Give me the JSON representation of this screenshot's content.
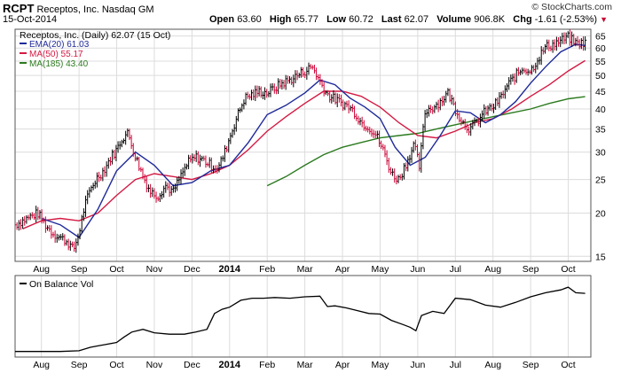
{
  "header": {
    "symbol": "RCPT",
    "company": "Receptos, Inc.",
    "exchange": "Nasdaq GM",
    "date": "15-Oct-2014",
    "brand": "© StockCharts.com",
    "stats": [
      {
        "label": "Open",
        "value": "63.60"
      },
      {
        "label": "High",
        "value": "65.77"
      },
      {
        "label": "Low",
        "value": "60.72"
      },
      {
        "label": "Last",
        "value": "62.07"
      },
      {
        "label": "Volume",
        "value": "906.8K"
      },
      {
        "label": "Chg",
        "value": "-1.61 (-2.53%)"
      }
    ],
    "chg_arrow": "down-triangle-icon"
  },
  "colors": {
    "price_up": "#000000",
    "price_down": "#cc0033",
    "ema20": "#1f2a9a",
    "ma50": "#d41a43",
    "ma185": "#2b7a1e",
    "obv": "#000000",
    "grid": "#dcdcdc"
  },
  "chart_data": [
    {
      "type": "line",
      "panel": "price",
      "scale": "log",
      "ylim": [
        14.5,
        68
      ],
      "legend_position": "top-left",
      "legend": [
        {
          "label": "Receptos, Inc. (Daily) 62.07 (15 Oct)",
          "color": "#000000"
        },
        {
          "label": "EMA(20) 61.03",
          "color": "#1f2a9a"
        },
        {
          "label": "MA(50) 55.17",
          "color": "#d41a43"
        },
        {
          "label": "MA(185) 43.40",
          "color": "#2b7a1e"
        }
      ],
      "y_ticks": [
        "65",
        "60",
        "55",
        "50",
        "45",
        "40",
        "35",
        "30",
        "25",
        "20",
        "15"
      ],
      "y_tick_values": [
        65,
        60,
        55,
        50,
        45,
        40,
        35,
        30,
        25,
        20,
        15
      ],
      "x_ticks": [
        "Aug",
        "Sep",
        "Oct",
        "Nov",
        "Dec",
        "2014",
        "Feb",
        "Mar",
        "Apr",
        "May",
        "Jun",
        "Jul",
        "Aug",
        "Sep",
        "Oct"
      ],
      "x_tick_bold": [
        false,
        false,
        false,
        false,
        false,
        true,
        false,
        false,
        false,
        false,
        false,
        false,
        false,
        false,
        false
      ],
      "x_tick_month_index": [
        1,
        2,
        3,
        4,
        5,
        6,
        7,
        8,
        9,
        10,
        11,
        12,
        13,
        14,
        15
      ],
      "x_range_months": [
        0.3,
        15.6
      ],
      "series": [
        {
          "name": "Receptos, Inc. (Daily)",
          "month_index": [
            0.3,
            0.5,
            0.7,
            0.9,
            1.1,
            1.3,
            1.5,
            1.7,
            1.85,
            2.0,
            2.15,
            2.35,
            2.5,
            2.65,
            2.85,
            3.0,
            3.15,
            3.3,
            3.5,
            3.7,
            3.9,
            4.1,
            4.3,
            4.5,
            4.7,
            4.9,
            5.1,
            5.3,
            5.5,
            5.7,
            5.85,
            6.0,
            6.2,
            6.4,
            6.6,
            6.8,
            7.0,
            7.2,
            7.4,
            7.6,
            7.8,
            8.0,
            8.2,
            8.4,
            8.6,
            8.75,
            8.9,
            9.1,
            9.3,
            9.5,
            9.7,
            9.9,
            10.1,
            10.3,
            10.5,
            10.7,
            10.9,
            11.05,
            11.2,
            11.4,
            11.6,
            11.8,
            12.0,
            12.2,
            12.4,
            12.6,
            12.8,
            13.0,
            13.2,
            13.4,
            13.6,
            13.8,
            14.0,
            14.2,
            14.4,
            14.6,
            14.8,
            15.0,
            15.2,
            15.45
          ],
          "values": [
            18.5,
            19.0,
            19.5,
            20.0,
            18.5,
            17.5,
            17.0,
            16.5,
            15.6,
            17.5,
            21.0,
            24.0,
            25.5,
            26.5,
            29.0,
            30.5,
            33.0,
            34.0,
            29.0,
            25.5,
            23.0,
            22.5,
            24.0,
            23.0,
            25.5,
            28.0,
            29.0,
            28.5,
            27.5,
            27.0,
            29.5,
            33.0,
            38.0,
            43.0,
            44.0,
            45.0,
            44.5,
            46.0,
            47.5,
            48.5,
            50.0,
            51.5,
            53.0,
            48.0,
            44.0,
            43.0,
            42.0,
            41.0,
            39.5,
            36.5,
            35.5,
            33.5,
            30.0,
            26.0,
            25.0,
            28.0,
            31.5,
            27.0,
            39.5,
            40.5,
            42.0,
            44.5,
            40.0,
            36.5,
            35.0,
            37.0,
            39.5,
            40.5,
            43.0,
            47.0,
            50.0,
            52.5,
            51.5,
            56.0,
            60.5,
            61.5,
            63.0,
            64.5,
            62.0,
            62.07
          ]
        },
        {
          "name": "EMA(20)",
          "month_index": [
            1.0,
            1.5,
            2.0,
            2.5,
            3.0,
            3.5,
            4.0,
            4.5,
            5.0,
            5.5,
            6.0,
            6.5,
            7.0,
            7.5,
            8.0,
            8.4,
            8.8,
            9.2,
            9.6,
            10.0,
            10.4,
            10.8,
            11.2,
            11.6,
            12.0,
            12.4,
            12.8,
            13.2,
            13.6,
            14.0,
            14.4,
            14.8,
            15.2,
            15.45
          ],
          "values": [
            19.3,
            18.5,
            17.0,
            20.5,
            26.5,
            30.0,
            27.5,
            24.0,
            24.5,
            26.5,
            27.5,
            32.0,
            38.5,
            41.0,
            44.5,
            48.5,
            47.0,
            43.0,
            40.5,
            37.5,
            31.0,
            27.5,
            29.0,
            33.5,
            39.5,
            39.0,
            36.5,
            38.5,
            42.0,
            47.5,
            53.0,
            58.5,
            61.5,
            61.03
          ]
        },
        {
          "name": "MA(50)",
          "month_index": [
            0.5,
            1.0,
            1.5,
            2.0,
            2.5,
            3.0,
            3.5,
            4.0,
            4.5,
            5.0,
            5.5,
            6.0,
            6.5,
            7.0,
            7.5,
            8.0,
            8.5,
            9.0,
            9.5,
            10.0,
            10.5,
            11.0,
            11.5,
            12.0,
            12.5,
            13.0,
            13.5,
            14.0,
            14.5,
            15.0,
            15.45
          ],
          "values": [
            18.0,
            19.0,
            19.3,
            19.0,
            20.0,
            22.5,
            25.0,
            26.0,
            25.5,
            25.0,
            26.0,
            27.5,
            30.5,
            34.5,
            38.0,
            41.5,
            45.0,
            45.0,
            43.5,
            40.5,
            36.5,
            33.5,
            33.0,
            34.5,
            36.5,
            37.5,
            40.0,
            43.5,
            47.0,
            51.5,
            55.17
          ]
        },
        {
          "name": "MA(185)",
          "month_index": [
            7.0,
            7.5,
            8.0,
            8.5,
            9.0,
            9.5,
            10.0,
            10.5,
            11.0,
            11.5,
            12.0,
            12.5,
            13.0,
            13.5,
            14.0,
            14.5,
            15.0,
            15.45
          ],
          "values": [
            24.0,
            25.5,
            27.5,
            29.5,
            31.0,
            32.0,
            33.0,
            33.5,
            34.0,
            35.0,
            36.0,
            37.0,
            38.0,
            39.0,
            40.0,
            41.5,
            42.8,
            43.4
          ]
        }
      ]
    },
    {
      "type": "line",
      "panel": "indicator",
      "legend": [
        {
          "label": "On Balance Vol",
          "color": "#000000"
        }
      ],
      "legend_position": "top-left",
      "x_ticks": [
        "Aug",
        "Sep",
        "Oct",
        "Nov",
        "Dec",
        "2014",
        "Feb",
        "Mar",
        "Apr",
        "May",
        "Jun",
        "Jul",
        "Aug",
        "Sep",
        "Oct"
      ],
      "x_tick_bold": [
        false,
        false,
        false,
        false,
        false,
        true,
        false,
        false,
        false,
        false,
        false,
        false,
        false,
        false,
        false
      ],
      "x_tick_month_index": [
        1,
        2,
        3,
        4,
        5,
        6,
        7,
        8,
        9,
        10,
        11,
        12,
        13,
        14,
        15
      ],
      "x_range_months": [
        0.3,
        15.6
      ],
      "ylim": [
        0,
        100
      ],
      "series": [
        {
          "name": "On Balance Vol",
          "month_index": [
            0.3,
            1.5,
            2.0,
            2.3,
            2.5,
            2.7,
            3.0,
            3.2,
            3.4,
            3.7,
            4.0,
            4.4,
            4.8,
            5.1,
            5.4,
            5.6,
            5.8,
            6.0,
            6.3,
            6.6,
            6.9,
            7.2,
            7.6,
            8.0,
            8.4,
            8.6,
            8.8,
            9.1,
            9.4,
            9.7,
            10.0,
            10.3,
            10.6,
            10.8,
            10.95,
            11.1,
            11.4,
            11.7,
            12.0,
            12.4,
            12.8,
            13.2,
            13.6,
            14.0,
            14.4,
            14.8,
            15.0,
            15.2,
            15.45
          ],
          "values": [
            3,
            3,
            4,
            9,
            11,
            13,
            16,
            24,
            31,
            35,
            30,
            28,
            28,
            31,
            35,
            58,
            64,
            67,
            77,
            80,
            80,
            81,
            80,
            82,
            83,
            68,
            69,
            66,
            62,
            58,
            57,
            48,
            42,
            38,
            33,
            55,
            61,
            58,
            80,
            78,
            70,
            67,
            74,
            82,
            88,
            92,
            96,
            88,
            87
          ]
        }
      ]
    }
  ]
}
